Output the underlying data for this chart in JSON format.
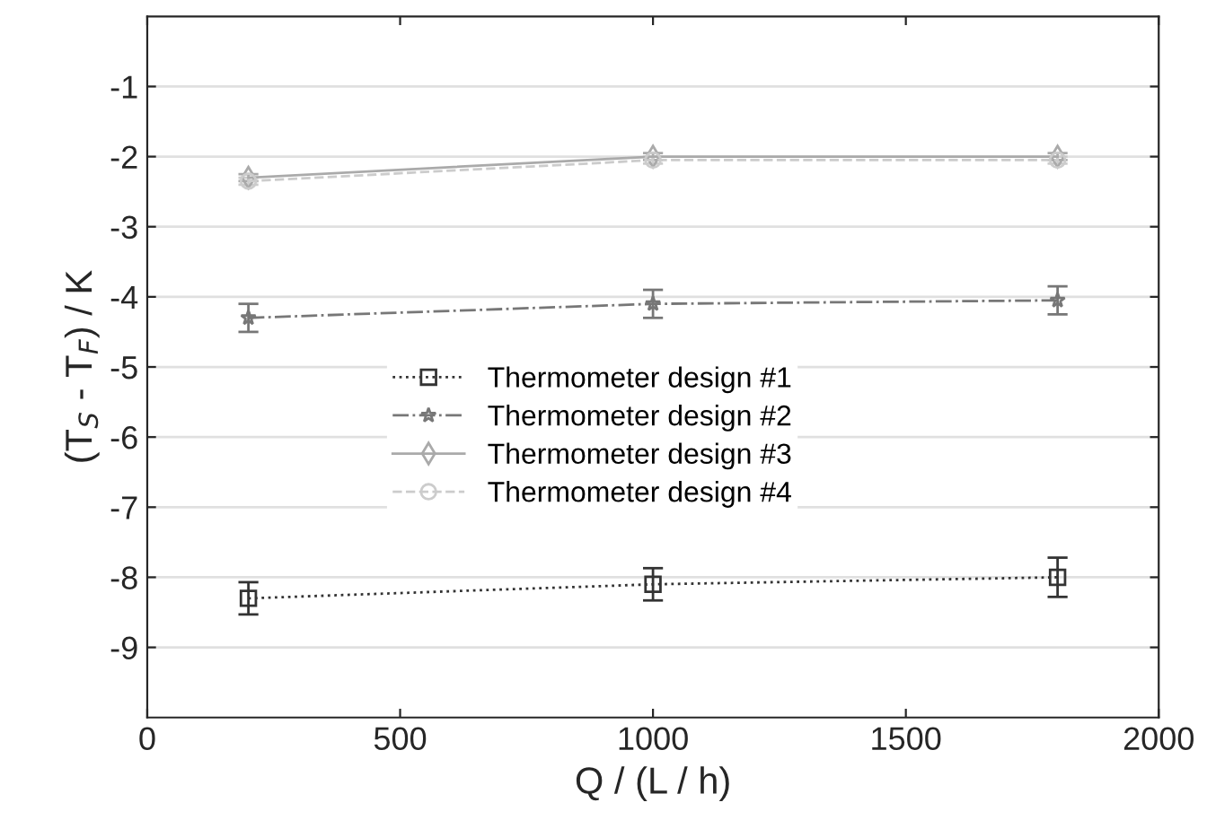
{
  "chart_data": {
    "type": "line",
    "xlabel": "Q / (L / h)",
    "ylabel": "(T$_{S}$ - T$_{F}$) / K",
    "x": [
      200,
      1000,
      1800
    ],
    "series": [
      {
        "name": "Thermometer design #1",
        "color": "#333333",
        "marker": "square",
        "line_style": "dotted",
        "values": [
          -8.3,
          -8.1,
          -8.0
        ],
        "errors": [
          0.23,
          0.23,
          0.28
        ]
      },
      {
        "name": "Thermometer design #2",
        "color": "#777777",
        "marker": "star",
        "line_style": "dashdot",
        "values": [
          -4.3,
          -4.1,
          -4.05
        ],
        "errors": [
          0.2,
          0.2,
          0.2
        ]
      },
      {
        "name": "Thermometer design #3",
        "color": "#aaaaaa",
        "marker": "diamond",
        "line_style": "solid",
        "values": [
          -2.3,
          -2.0,
          -2.0
        ],
        "errors": [
          0.05,
          0.05,
          0.05
        ]
      },
      {
        "name": "Thermometer design #4",
        "color": "#cccccc",
        "marker": "circle",
        "line_style": "dashed",
        "values": [
          -2.35,
          -2.05,
          -2.05
        ],
        "errors": [
          0.05,
          0.05,
          0.05
        ]
      }
    ],
    "xlim": [
      0,
      2000
    ],
    "xticks": [
      0,
      500,
      1000,
      1500,
      2000
    ],
    "ylim": [
      -10,
      0
    ],
    "yticks": [
      -9,
      -8,
      -7,
      -6,
      -5,
      -4,
      -3,
      -2,
      -1
    ],
    "grid": "y",
    "legend": "center"
  }
}
